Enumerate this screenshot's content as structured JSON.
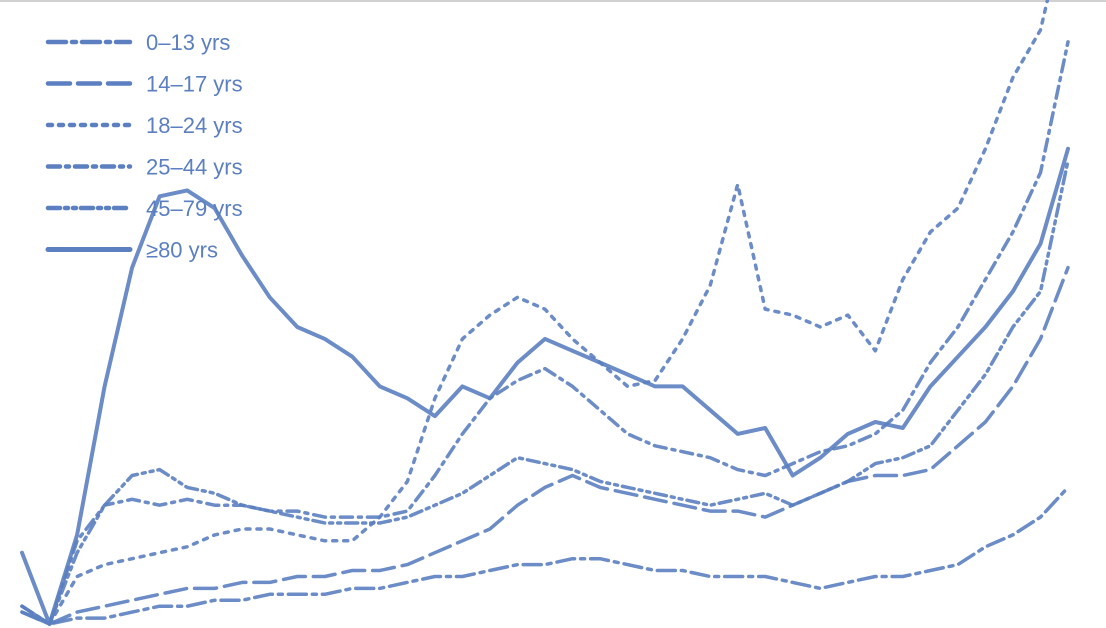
{
  "chart_data": {
    "type": "line",
    "title": "",
    "xlabel": "",
    "ylabel": "",
    "x": [
      0,
      1,
      2,
      3,
      4,
      5,
      6,
      7,
      8,
      9,
      10,
      11,
      12,
      13,
      14,
      15,
      16,
      17,
      18,
      19,
      20,
      21,
      22,
      23,
      24,
      25,
      26,
      27,
      28,
      29,
      30,
      31,
      32,
      33,
      34,
      35,
      36,
      37,
      38
    ],
    "ylim": [
      0,
      100
    ],
    "grid": false,
    "legend_placement": "top-left",
    "series": [
      {
        "name": "0–13 yrs",
        "dash": "long-dash-dot",
        "values": [
          2,
          0,
          1,
          1,
          2,
          3,
          3,
          4,
          4,
          5,
          5,
          5,
          6,
          6,
          7,
          8,
          8,
          9,
          10,
          10,
          11,
          11,
          10,
          9,
          9,
          8,
          8,
          8,
          7,
          6,
          7,
          8,
          8,
          9,
          10,
          13,
          15,
          18,
          23
        ]
      },
      {
        "name": "14–17 yrs",
        "dash": "long-dash",
        "values": [
          2,
          0,
          2,
          3,
          4,
          5,
          6,
          6,
          7,
          7,
          8,
          8,
          9,
          9,
          10,
          12,
          14,
          16,
          20,
          23,
          25,
          23,
          22,
          21,
          20,
          19,
          19,
          18,
          20,
          22,
          24,
          25,
          25,
          26,
          30,
          34,
          40,
          48,
          60
        ]
      },
      {
        "name": "18–24 yrs",
        "dash": "dot",
        "values": [
          3,
          0,
          8,
          10,
          11,
          12,
          13,
          15,
          16,
          16,
          15,
          14,
          14,
          18,
          24,
          38,
          48,
          52,
          55,
          53,
          48,
          44,
          40,
          41,
          48,
          57,
          74,
          53,
          52,
          50,
          52,
          46,
          58,
          66,
          70,
          80,
          92,
          100,
          120
        ]
      },
      {
        "name": "25–44 yrs",
        "dash": "dash-dot",
        "values": [
          3,
          0,
          14,
          20,
          21,
          20,
          21,
          20,
          20,
          19,
          19,
          18,
          18,
          18,
          19,
          25,
          32,
          38,
          41,
          43,
          40,
          36,
          32,
          30,
          29,
          28,
          26,
          25,
          27,
          29,
          30,
          32,
          36,
          44,
          50,
          58,
          66,
          76,
          98
        ]
      },
      {
        "name": "45–79 yrs",
        "dash": "dash-dot-dot",
        "values": [
          3,
          0,
          12,
          20,
          25,
          26,
          23,
          22,
          20,
          19,
          18,
          17,
          17,
          17,
          18,
          20,
          22,
          25,
          28,
          27,
          26,
          24,
          23,
          22,
          21,
          20,
          21,
          22,
          20,
          22,
          24,
          27,
          28,
          30,
          36,
          42,
          50,
          56,
          78
        ]
      },
      {
        "name": "≥80 yrs",
        "dash": "solid",
        "values": [
          12,
          0,
          15,
          40,
          60,
          72,
          73,
          70,
          62,
          55,
          50,
          48,
          45,
          40,
          38,
          35,
          40,
          38,
          44,
          48,
          46,
          44,
          42,
          40,
          40,
          36,
          32,
          33,
          25,
          28,
          32,
          34,
          33,
          40,
          45,
          50,
          56,
          64,
          80
        ]
      }
    ]
  },
  "style": {
    "line_color": "#5b7fc0",
    "text_color": "#5b7fc0",
    "frame_color": "#c9c9c9",
    "background": "#ffffff"
  }
}
